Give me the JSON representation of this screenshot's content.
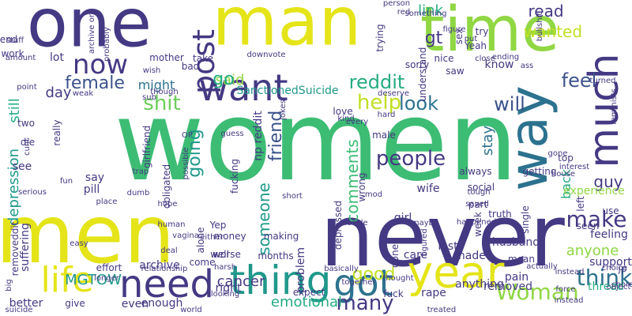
{
  "palette": {
    "background": "#ffffff",
    "colors": [
      "#3dbc74",
      "#e4e419",
      "#443983",
      "#2c728e",
      "#25ab82",
      "#90d743",
      "#46307e",
      "#5ac864",
      "#1f988b",
      "#3b528b",
      "#6ccd5a",
      "#c2df23",
      "#481668"
    ]
  },
  "words": [
    "women",
    "never",
    "men",
    "one",
    "man",
    "time",
    "year",
    "need",
    "thing",
    "got",
    "life",
    "want",
    "now",
    "way",
    "much",
    "post",
    "people",
    "shit",
    "think",
    "make",
    "Woman",
    "look",
    "feel",
    "many",
    "will",
    "help",
    "reddit",
    "female",
    "day",
    "depression",
    "still",
    "good",
    "going",
    "comments",
    "friend",
    "someone",
    "gt",
    "link",
    "read",
    "wanted",
    "back",
    "stay",
    "guy",
    "anyone",
    "emotional",
    "cancer",
    "MGTOW",
    "said",
    "might",
    "go",
    "SanctionedSuicide",
    "np reddit",
    "rape",
    "lost",
    "husband",
    "pain",
    "know",
    "care",
    "problem",
    "feeling",
    "support",
    "experience",
    "thread",
    "pill",
    "see",
    "say",
    "archive",
    "money",
    "Yep",
    "well",
    "wife",
    "girl",
    "obligated",
    "fucking",
    "suffering",
    "removeddit",
    "anything",
    "removed",
    "fuck",
    "better",
    "enough",
    "even",
    "give",
    "right",
    "made",
    "done",
    "truth",
    "single",
    "week",
    "mean",
    "lot",
    "work",
    "end",
    "bad",
    "mother",
    "nice",
    "try",
    "Yeah",
    "sex",
    "understand",
    "wrong",
    "getting",
    "top",
    "always",
    "social",
    "part",
    "making",
    "depressed",
    "really",
    "two",
    "die",
    "saw",
    "love",
    "take",
    "trying",
    "sorry",
    "girlfriend",
    "male",
    "alone",
    "come",
    "worse",
    "effort",
    "relationship",
    "months",
    "expect",
    "thought",
    "together",
    "actually",
    "instead",
    "left",
    "use",
    "jp",
    "seen",
    "happened",
    "maybe",
    "figured",
    "decide",
    "hope",
    "human",
    "place",
    "fun",
    "trap",
    "dumb",
    "deal",
    "vagina",
    "either",
    "harsh",
    "basically",
    "saved",
    "tough",
    "interest",
    "choice",
    "force",
    "object",
    "looking",
    "world",
    "treated",
    "big",
    "suicide",
    "longer",
    "easy",
    "serious",
    "short",
    "stuff",
    "amount",
    "point",
    "weak",
    "every",
    "hard",
    "gone",
    "house",
    "turned",
    "deserve",
    "downvote",
    "wish",
    "ending",
    "ass",
    "close",
    "put",
    "bullshit",
    "feminists",
    "figure",
    "person",
    "red",
    "something",
    "archive org",
    "probably",
    "though",
    "sub",
    "OP",
    "guess",
    "cunt",
    "possible",
    "jokes",
    "kind",
    "mod",
    "chore",
    "instead"
  ]
}
